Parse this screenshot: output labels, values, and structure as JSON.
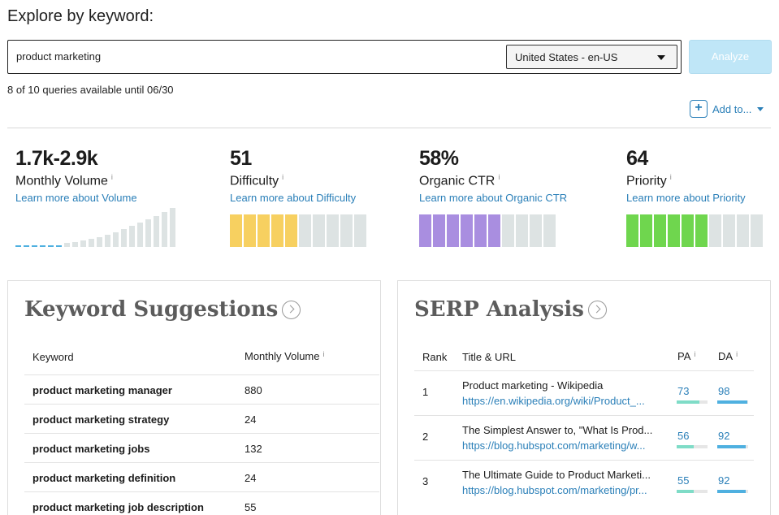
{
  "page": {
    "title": "Explore by keyword:"
  },
  "search": {
    "value": "product marketing",
    "placeholder": ""
  },
  "locale": {
    "selected": "United States - en-US"
  },
  "analyze_label": "Analyze",
  "quota_text": "8 of 10 queries available until 06/30",
  "add_to_label": "Add to...",
  "colors": {
    "link": "#2a7fb8",
    "difficulty": "#f7d060",
    "ctr": "#a98ee0",
    "priority": "#6fd64e",
    "empty": "#dde3e3",
    "volume_active": "#4fb0e0"
  },
  "metrics": {
    "volume": {
      "value": "1.7k-2.9k",
      "name": "Monthly Volume",
      "info": "i",
      "learn": "Learn more about Volume",
      "bar_count": 20,
      "active_bars": 6
    },
    "difficulty": {
      "value": "51",
      "name": "Difficulty",
      "info": "i",
      "learn": "Learn more about Difficulty",
      "level": 0.5
    },
    "ctr": {
      "value": "58%",
      "name": "Organic CTR",
      "info": "i",
      "learn": "Learn more about Organic CTR",
      "level": 0.6
    },
    "priority": {
      "value": "64",
      "name": "Priority",
      "info": "i",
      "learn": "Learn more about Priority",
      "level": 0.64
    }
  },
  "keyword_suggestions": {
    "title": "Keyword Suggestions",
    "col_keyword": "Keyword",
    "col_volume": "Monthly Volume",
    "info": "i",
    "rows": [
      {
        "keyword": "product marketing manager",
        "volume": "880"
      },
      {
        "keyword": "product marketing strategy",
        "volume": "24"
      },
      {
        "keyword": "product marketing jobs",
        "volume": "132"
      },
      {
        "keyword": "product marketing definition",
        "volume": "24"
      },
      {
        "keyword": "product marketing job description",
        "volume": "55"
      }
    ]
  },
  "serp": {
    "title": "SERP Analysis",
    "col_rank": "Rank",
    "col_title": "Title & URL",
    "col_pa": "PA",
    "col_da": "DA",
    "info": "i",
    "rows": [
      {
        "rank": "1",
        "title": "Product marketing - Wikipedia",
        "url": "https://en.wikipedia.org/wiki/Product_...",
        "pa": 73,
        "da": 98
      },
      {
        "rank": "2",
        "title": "The Simplest Answer to, \"What Is Prod...",
        "url": "https://blog.hubspot.com/marketing/w...",
        "pa": 56,
        "da": 92
      },
      {
        "rank": "3",
        "title": "The Ultimate Guide to Product Marketi...",
        "url": "https://blog.hubspot.com/marketing/pr...",
        "pa": 55,
        "da": 92
      }
    ]
  }
}
